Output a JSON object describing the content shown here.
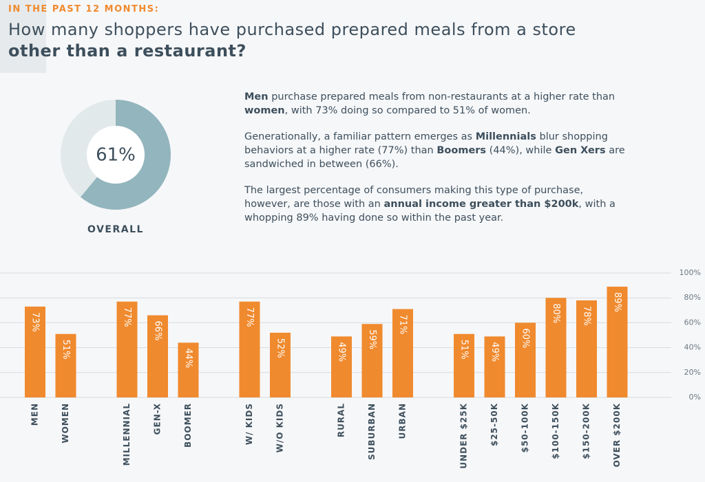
{
  "header": {
    "kicker": "IN THE PAST 12 MONTHS:",
    "title": [
      "How many shoppers have purchased prepared meals from a store",
      "other than a restaurant?"
    ]
  },
  "text": {
    "paragraphs": [
      [
        {
          "text": "Men",
          "bold": true
        },
        {
          "text": " purchase prepared meals from non-restaurants at a higher rate than "
        },
        {
          "text": "women",
          "bold": true
        },
        {
          "text": ", with 73% doing so compared to 51% of women."
        }
      ],
      [
        {
          "text": "Generationally, a familiar pattern emerges as "
        },
        {
          "text": "Millennials",
          "bold": true
        },
        {
          "text": " blur shopping behaviors at a higher rate (77%) than "
        },
        {
          "text": "Boomers",
          "bold": true
        },
        {
          "text": " (44%), while "
        },
        {
          "text": "Gen Xers",
          "bold": true
        },
        {
          "text": " are sandwiched in between (66%)."
        }
      ],
      [
        {
          "text": "The largest percentage of consumers making this type of purchase, however, are those with an "
        },
        {
          "text": "annual income greater than $200k",
          "bold": true
        },
        {
          "text": ", with a whopping 89% having done so within the past year."
        }
      ]
    ]
  },
  "chart_data": [
    {
      "type": "donut",
      "values": [
        61
      ],
      "value_labels": [
        "61%"
      ],
      "label": "OVERALL",
      "color": "#93b5bd",
      "track_color": "#e2e9eb"
    },
    {
      "type": "bar",
      "color": "#f08a2e",
      "categories": [
        "MEN",
        "WOMEN",
        null,
        "MILLENNIAL",
        "GEN-X",
        "BOOMER",
        null,
        "W/ KIDS",
        "W/O KIDS",
        null,
        "RURAL",
        "SUBURBAN",
        "URBAN",
        null,
        "UNDER $25K",
        "$25-50K",
        "$50-100K",
        "$100-150K",
        "$150-200K",
        "OVER $200K"
      ],
      "values": [
        73,
        51,
        null,
        77,
        66,
        44,
        null,
        77,
        52,
        null,
        49,
        59,
        71,
        null,
        51,
        49,
        60,
        80,
        78,
        89
      ],
      "value_labels": [
        "73%",
        "51%",
        null,
        "77%",
        "66%",
        "44%",
        null,
        "77%",
        "52%",
        null,
        "49%",
        "59%",
        "71%",
        null,
        "51%",
        "49%",
        "60%",
        "80%",
        "78%",
        "89%"
      ],
      "ylim": [
        0,
        100
      ],
      "yticks": [
        {
          "value": 0,
          "label": "0%"
        },
        {
          "value": 20,
          "label": "20%"
        },
        {
          "value": 40,
          "label": "40%"
        },
        {
          "value": 60,
          "label": "60%"
        },
        {
          "value": 80,
          "label": "80%"
        },
        {
          "value": 100,
          "label": "100%"
        }
      ],
      "grid": true
    }
  ]
}
